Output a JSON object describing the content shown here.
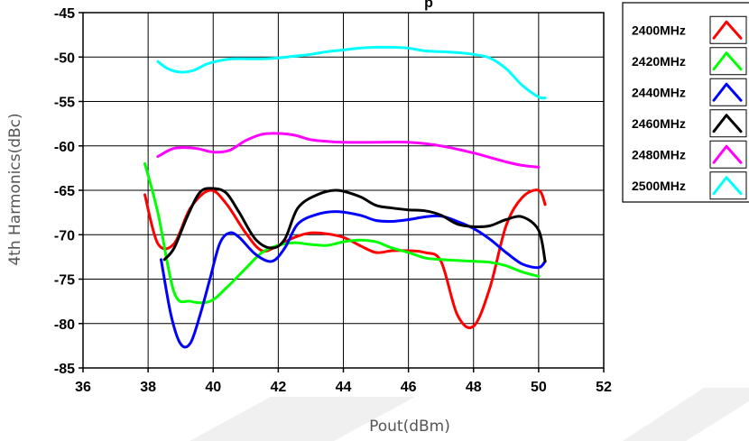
{
  "chart_data": {
    "type": "line",
    "title_fragment": "p",
    "xlabel": "Pout(dBm)",
    "ylabel": "4th Harmonics(dBc)",
    "xlim": [
      36,
      52
    ],
    "ylim": [
      -85,
      -45
    ],
    "xticks": [
      36,
      38,
      40,
      42,
      44,
      46,
      48,
      50,
      52
    ],
    "yticks": [
      -45,
      -50,
      -55,
      -60,
      -65,
      -70,
      -75,
      -80,
      -85
    ],
    "xtick_labels": [
      "36",
      "38",
      "40",
      "42",
      "44",
      "46",
      "48",
      "50",
      "52"
    ],
    "ytick_labels": [
      "-45",
      "-50",
      "-55",
      "-60",
      "-65",
      "-70",
      "-75",
      "-80",
      "-85"
    ],
    "grid": true,
    "legend_position": "right",
    "series": [
      {
        "name": "2400MHz",
        "color": "#ff0000",
        "x": [
          37.9,
          38.3,
          38.8,
          39.3,
          39.9,
          40.4,
          41.0,
          41.5,
          42.0,
          42.5,
          43.0,
          43.5,
          44.0,
          44.5,
          45.0,
          45.5,
          46.0,
          46.5,
          47.0,
          47.5,
          48.0,
          48.5,
          49.0,
          49.5,
          50.0,
          50.2
        ],
        "y": [
          -65.5,
          -71.0,
          -71.0,
          -67.0,
          -65.0,
          -66.5,
          -69.8,
          -71.8,
          -71.2,
          -70.3,
          -69.8,
          -69.9,
          -70.3,
          -71.2,
          -72.0,
          -71.8,
          -71.8,
          -72.0,
          -73.0,
          -79.0,
          -80.3,
          -76.0,
          -69.0,
          -65.8,
          -65.0,
          -66.6
        ]
      },
      {
        "name": "2420MHz",
        "color": "#00ff00",
        "x": [
          37.9,
          38.3,
          38.8,
          39.3,
          39.9,
          40.4,
          41.0,
          41.5,
          42.0,
          42.5,
          43.0,
          43.5,
          44.0,
          44.5,
          45.0,
          45.5,
          46.0,
          46.5,
          47.0,
          47.5,
          48.0,
          48.5,
          49.0,
          49.5,
          50.0
        ],
        "y": [
          -62.0,
          -67.5,
          -76.5,
          -77.5,
          -77.5,
          -76.0,
          -73.8,
          -72.0,
          -71.2,
          -70.9,
          -71.1,
          -71.2,
          -70.8,
          -70.6,
          -70.8,
          -71.5,
          -72.0,
          -72.6,
          -72.8,
          -72.9,
          -73.0,
          -73.1,
          -73.5,
          -74.2,
          -74.7
        ]
      },
      {
        "name": "2440MHz",
        "color": "#0000ff",
        "x": [
          38.4,
          38.7,
          39.0,
          39.3,
          39.6,
          39.9,
          40.2,
          40.5,
          40.8,
          41.3,
          41.8,
          42.2,
          42.6,
          43.2,
          43.8,
          44.5,
          45.0,
          45.5,
          46.0,
          46.5,
          47.0,
          47.5,
          48.0,
          48.5,
          49.0,
          49.5,
          50.0,
          50.2
        ],
        "y": [
          -72.8,
          -79.0,
          -82.3,
          -82.2,
          -79.0,
          -75.0,
          -71.0,
          -69.8,
          -70.3,
          -72.2,
          -73.0,
          -71.5,
          -68.8,
          -67.7,
          -67.4,
          -67.8,
          -68.4,
          -68.5,
          -68.3,
          -68.0,
          -67.9,
          -68.5,
          -69.3,
          -70.5,
          -72.0,
          -73.3,
          -73.7,
          -73.0
        ]
      },
      {
        "name": "2460MHz",
        "color": "#000000",
        "x": [
          38.5,
          38.8,
          39.2,
          39.6,
          40.0,
          40.4,
          40.8,
          41.3,
          41.8,
          42.2,
          42.6,
          43.2,
          43.8,
          44.5,
          45.0,
          45.5,
          46.0,
          46.5,
          47.0,
          47.5,
          48.0,
          48.5,
          49.0,
          49.5,
          50.0,
          50.2
        ],
        "y": [
          -72.8,
          -71.5,
          -68.0,
          -65.2,
          -64.8,
          -65.3,
          -67.5,
          -70.5,
          -71.5,
          -70.5,
          -67.0,
          -65.5,
          -65.0,
          -65.7,
          -66.7,
          -67.0,
          -67.2,
          -67.3,
          -67.8,
          -68.8,
          -69.1,
          -69.0,
          -68.3,
          -68.0,
          -69.5,
          -73.0
        ]
      },
      {
        "name": "2480MHz",
        "color": "#ff00ff",
        "x": [
          38.3,
          38.7,
          39.0,
          39.5,
          40.0,
          40.5,
          41.0,
          41.5,
          42.0,
          42.5,
          43.0,
          43.5,
          44.0,
          45.0,
          46.0,
          47.0,
          48.0,
          48.5,
          49.0,
          49.5,
          50.0
        ],
        "y": [
          -61.2,
          -60.4,
          -60.2,
          -60.3,
          -60.7,
          -60.5,
          -59.4,
          -58.7,
          -58.6,
          -58.8,
          -59.3,
          -59.5,
          -59.6,
          -59.6,
          -59.6,
          -60.0,
          -60.8,
          -61.3,
          -61.8,
          -62.2,
          -62.4
        ]
      },
      {
        "name": "2500MHz",
        "color": "#00ffff",
        "x": [
          38.3,
          38.6,
          39.0,
          39.4,
          39.8,
          40.2,
          40.6,
          41.0,
          41.5,
          42.0,
          42.5,
          43.0,
          43.5,
          44.0,
          44.5,
          45.0,
          45.5,
          46.0,
          46.5,
          47.0,
          47.5,
          48.0,
          48.5,
          49.0,
          49.5,
          50.0,
          50.2
        ],
        "y": [
          -50.5,
          -51.3,
          -51.7,
          -51.5,
          -50.8,
          -50.4,
          -50.2,
          -50.2,
          -50.2,
          -50.1,
          -49.9,
          -49.7,
          -49.4,
          -49.2,
          -49.0,
          -48.9,
          -48.9,
          -49.0,
          -49.3,
          -49.4,
          -49.5,
          -49.7,
          -50.1,
          -51.3,
          -53.2,
          -54.5,
          -54.6
        ]
      }
    ]
  }
}
